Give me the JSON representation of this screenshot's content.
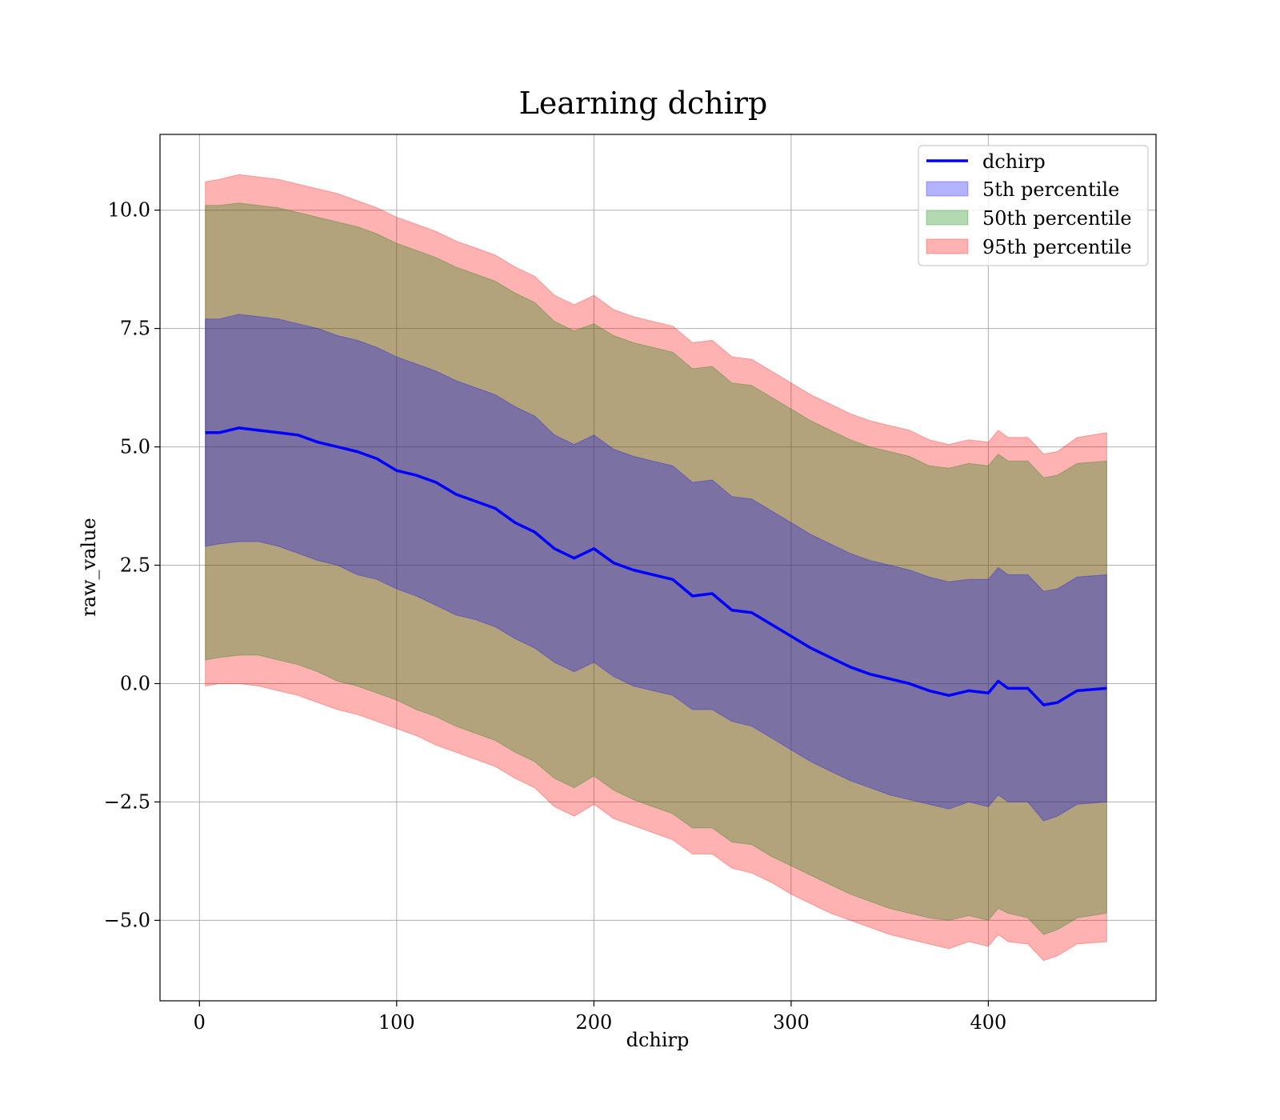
{
  "chart_data": {
    "type": "area",
    "title": "Learning dchirp",
    "xlabel": "dchirp",
    "ylabel": "raw_value",
    "xlim": [
      -20,
      485
    ],
    "ylim": [
      -6.7,
      11.6
    ],
    "grid": true,
    "legend_placement": "top-right",
    "x_ticks": [
      0,
      100,
      200,
      300,
      400
    ],
    "x_tick_labels": [
      "0",
      "100",
      "200",
      "300",
      "400"
    ],
    "y_ticks": [
      -5.0,
      -2.5,
      0.0,
      2.5,
      5.0,
      7.5,
      10.0
    ],
    "y_tick_labels": [
      "−5.0",
      "−2.5",
      "0.0",
      "2.5",
      "5.0",
      "7.5",
      "10.0"
    ],
    "x": [
      3,
      10,
      20,
      30,
      40,
      50,
      60,
      70,
      80,
      90,
      100,
      110,
      120,
      130,
      140,
      150,
      160,
      170,
      180,
      190,
      200,
      210,
      220,
      230,
      240,
      250,
      260,
      270,
      280,
      290,
      300,
      310,
      320,
      330,
      340,
      350,
      360,
      370,
      380,
      390,
      400,
      405,
      410,
      420,
      428,
      435,
      445,
      460
    ],
    "series": [
      {
        "name": "dchirp",
        "kind": "line",
        "color": "#0000ff",
        "values": [
          5.3,
          5.3,
          5.4,
          5.35,
          5.3,
          5.25,
          5.1,
          5.0,
          4.9,
          4.75,
          4.5,
          4.4,
          4.25,
          4.0,
          3.85,
          3.7,
          3.4,
          3.2,
          2.85,
          2.65,
          2.85,
          2.55,
          2.4,
          2.3,
          2.2,
          1.85,
          1.9,
          1.55,
          1.5,
          1.25,
          1.0,
          0.75,
          0.55,
          0.35,
          0.2,
          0.1,
          0.0,
          -0.15,
          -0.25,
          -0.15,
          -0.2,
          0.05,
          -0.1,
          -0.1,
          -0.45,
          -0.4,
          -0.15,
          -0.1
        ]
      },
      {
        "name": "5th percentile",
        "kind": "band",
        "color": "#0000ff",
        "opacity": 0.3,
        "lower": [
          2.9,
          2.95,
          3.0,
          3.0,
          2.9,
          2.75,
          2.6,
          2.5,
          2.3,
          2.2,
          2.0,
          1.85,
          1.65,
          1.45,
          1.35,
          1.2,
          0.95,
          0.75,
          0.45,
          0.25,
          0.45,
          0.15,
          -0.05,
          -0.15,
          -0.25,
          -0.55,
          -0.55,
          -0.8,
          -0.9,
          -1.15,
          -1.4,
          -1.65,
          -1.85,
          -2.05,
          -2.2,
          -2.35,
          -2.45,
          -2.55,
          -2.65,
          -2.5,
          -2.6,
          -2.35,
          -2.5,
          -2.5,
          -2.9,
          -2.8,
          -2.55,
          -2.5
        ],
        "upper": [
          7.7,
          7.7,
          7.8,
          7.75,
          7.7,
          7.6,
          7.5,
          7.35,
          7.25,
          7.1,
          6.9,
          6.75,
          6.6,
          6.4,
          6.25,
          6.1,
          5.85,
          5.65,
          5.25,
          5.05,
          5.25,
          4.95,
          4.8,
          4.7,
          4.6,
          4.25,
          4.3,
          3.95,
          3.9,
          3.65,
          3.4,
          3.15,
          2.95,
          2.75,
          2.6,
          2.5,
          2.4,
          2.25,
          2.15,
          2.2,
          2.2,
          2.45,
          2.3,
          2.3,
          1.95,
          2.0,
          2.25,
          2.3
        ]
      },
      {
        "name": "50th percentile",
        "kind": "band",
        "color": "#008000",
        "opacity": 0.3,
        "lower": [
          0.5,
          0.55,
          0.6,
          0.6,
          0.5,
          0.4,
          0.25,
          0.05,
          -0.05,
          -0.2,
          -0.35,
          -0.55,
          -0.7,
          -0.9,
          -1.05,
          -1.2,
          -1.45,
          -1.65,
          -2.0,
          -2.2,
          -1.95,
          -2.25,
          -2.45,
          -2.6,
          -2.75,
          -3.05,
          -3.05,
          -3.35,
          -3.4,
          -3.65,
          -3.85,
          -4.05,
          -4.25,
          -4.45,
          -4.6,
          -4.75,
          -4.85,
          -4.95,
          -5.0,
          -4.9,
          -5.0,
          -4.75,
          -4.85,
          -4.95,
          -5.3,
          -5.2,
          -4.95,
          -4.85
        ],
        "upper": [
          10.1,
          10.1,
          10.15,
          10.1,
          10.05,
          9.95,
          9.85,
          9.75,
          9.65,
          9.5,
          9.3,
          9.15,
          9.0,
          8.8,
          8.65,
          8.5,
          8.25,
          8.05,
          7.65,
          7.45,
          7.6,
          7.35,
          7.2,
          7.1,
          7.0,
          6.65,
          6.7,
          6.35,
          6.3,
          6.05,
          5.8,
          5.55,
          5.35,
          5.15,
          5.0,
          4.9,
          4.8,
          4.6,
          4.55,
          4.65,
          4.6,
          4.85,
          4.7,
          4.7,
          4.35,
          4.4,
          4.65,
          4.7
        ]
      },
      {
        "name": "95th percentile",
        "kind": "band",
        "color": "#ff0000",
        "opacity": 0.3,
        "lower": [
          -0.05,
          0.0,
          0.0,
          -0.05,
          -0.15,
          -0.25,
          -0.4,
          -0.55,
          -0.65,
          -0.8,
          -0.95,
          -1.1,
          -1.3,
          -1.45,
          -1.6,
          -1.75,
          -2.0,
          -2.2,
          -2.6,
          -2.8,
          -2.55,
          -2.85,
          -3.0,
          -3.15,
          -3.3,
          -3.6,
          -3.6,
          -3.9,
          -4.0,
          -4.2,
          -4.45,
          -4.65,
          -4.85,
          -5.0,
          -5.15,
          -5.3,
          -5.4,
          -5.5,
          -5.6,
          -5.45,
          -5.55,
          -5.3,
          -5.45,
          -5.5,
          -5.85,
          -5.75,
          -5.5,
          -5.45
        ],
        "upper": [
          10.6,
          10.65,
          10.75,
          10.7,
          10.65,
          10.55,
          10.45,
          10.35,
          10.2,
          10.05,
          9.85,
          9.7,
          9.55,
          9.35,
          9.2,
          9.05,
          8.8,
          8.6,
          8.2,
          8.0,
          8.2,
          7.9,
          7.75,
          7.65,
          7.55,
          7.2,
          7.25,
          6.9,
          6.85,
          6.6,
          6.35,
          6.1,
          5.9,
          5.7,
          5.55,
          5.45,
          5.35,
          5.15,
          5.05,
          5.15,
          5.1,
          5.35,
          5.2,
          5.2,
          4.85,
          4.9,
          5.2,
          5.3
        ]
      }
    ]
  }
}
